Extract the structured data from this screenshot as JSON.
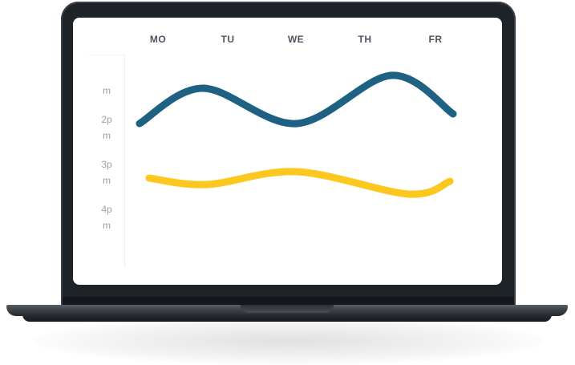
{
  "chart_data": {
    "type": "line",
    "categories": [
      "MO",
      "TU",
      "WE",
      "TH",
      "FR"
    ],
    "y_tick_labels": [
      "m",
      "2p",
      "m",
      "3p",
      "m",
      "4p",
      "m"
    ],
    "series": [
      {
        "color": "#1e6182",
        "values": [
          -0.05,
          0.5,
          -0.05,
          0.7,
          0.1
        ]
      },
      {
        "color": "#fcc71f",
        "values": [
          -0.9,
          -1.0,
          -0.8,
          -1.15,
          -0.95
        ]
      }
    ],
    "grid": false
  }
}
